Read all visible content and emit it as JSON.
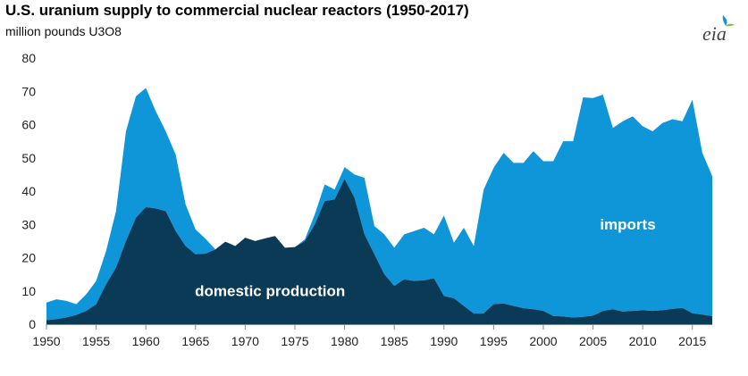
{
  "title": "U.S. uranium supply to commercial nuclear reactors (1950-2017)",
  "subtitle": "million pounds U3O8",
  "logo_text": "eia",
  "colors": {
    "domestic": "#0b3a56",
    "imports": "#0f96d8",
    "axis": "#888888",
    "logo_leaf": "#0f96d8",
    "logo_text": "#444444"
  },
  "chart_data": {
    "type": "area",
    "stacked": true,
    "title": "U.S. uranium supply to commercial nuclear reactors (1950-2017)",
    "ylabel": "million pounds U3O8",
    "xlim": [
      1950,
      2017
    ],
    "ylim": [
      0,
      80
    ],
    "xticks": [
      "1950",
      "1955",
      "1960",
      "1965",
      "1970",
      "1975",
      "1980",
      "1985",
      "1990",
      "1995",
      "2000",
      "2005",
      "2010",
      "2015"
    ],
    "yticks": [
      "0",
      "10",
      "20",
      "30",
      "40",
      "50",
      "60",
      "70",
      "80"
    ],
    "x": [
      1950,
      1951,
      1952,
      1953,
      1954,
      1955,
      1956,
      1957,
      1958,
      1959,
      1960,
      1961,
      1962,
      1963,
      1964,
      1965,
      1966,
      1967,
      1968,
      1969,
      1970,
      1971,
      1972,
      1973,
      1974,
      1975,
      1976,
      1977,
      1978,
      1979,
      1980,
      1981,
      1982,
      1983,
      1984,
      1985,
      1986,
      1987,
      1988,
      1989,
      1990,
      1991,
      1992,
      1993,
      1994,
      1995,
      1996,
      1997,
      1998,
      1999,
      2000,
      2001,
      2002,
      2003,
      2004,
      2005,
      2006,
      2007,
      2008,
      2009,
      2010,
      2011,
      2012,
      2013,
      2014,
      2015,
      2016,
      2017
    ],
    "series": [
      {
        "name": "domestic production",
        "values": [
          1.2,
          1.5,
          2.0,
          2.8,
          4.0,
          6.0,
          12.0,
          17.0,
          25.0,
          32.0,
          35.2,
          34.8,
          34.0,
          28.0,
          23.5,
          21.0,
          21.2,
          22.5,
          24.8,
          23.5,
          26.0,
          25.0,
          25.8,
          26.5,
          23.0,
          23.2,
          25.0,
          30.0,
          37.0,
          37.5,
          43.7,
          38.0,
          27.0,
          21.0,
          15.0,
          11.5,
          13.5,
          13.0,
          13.2,
          13.8,
          8.5,
          7.8,
          5.5,
          3.2,
          3.3,
          6.0,
          6.2,
          5.5,
          4.8,
          4.5,
          4.0,
          2.5,
          2.3,
          2.0,
          2.2,
          2.6,
          4.0,
          4.5,
          3.8,
          4.0,
          4.2,
          4.0,
          4.2,
          4.6,
          4.9,
          3.3,
          2.9,
          2.4
        ]
      },
      {
        "name": "imports",
        "values": [
          5.3,
          6.0,
          5.0,
          3.2,
          5.0,
          7.0,
          10.0,
          17.0,
          33.0,
          36.5,
          35.8,
          29.2,
          24.0,
          23.0,
          12.5,
          7.5,
          4.5,
          0.0,
          0.0,
          0.0,
          0.0,
          0.0,
          0.0,
          0.0,
          0.0,
          0.0,
          0.5,
          3.0,
          5.0,
          3.0,
          3.5,
          7.0,
          17.0,
          8.5,
          12.0,
          11.5,
          13.5,
          15.0,
          15.8,
          13.2,
          24.2,
          16.7,
          23.5,
          20.3,
          37.2,
          41.0,
          45.3,
          43.0,
          43.7,
          47.5,
          45.0,
          46.5,
          52.7,
          53.0,
          66.0,
          65.4,
          65.0,
          54.5,
          57.2,
          58.5,
          55.3,
          54.0,
          56.3,
          57.0,
          56.1,
          64.2,
          48.6,
          42.1
        ]
      }
    ],
    "annotations": [
      {
        "text": "imports",
        "series": "imports"
      },
      {
        "text": "domestic production",
        "series": "domestic production"
      }
    ],
    "grid": false,
    "legend": "none"
  }
}
